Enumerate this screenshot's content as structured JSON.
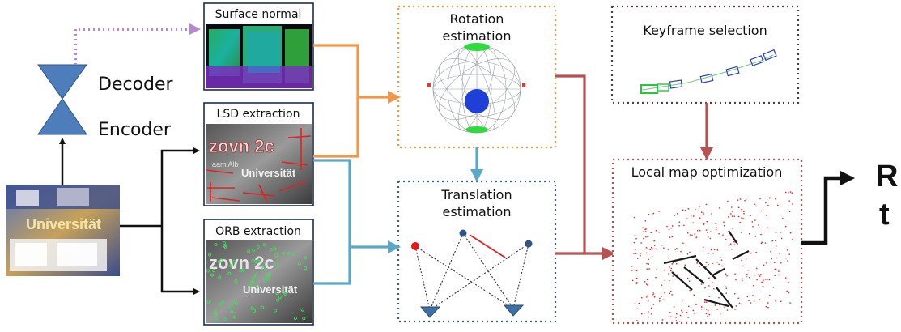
{
  "nodes": {
    "decoder_label": "Decoder",
    "encoder_label": "Encoder",
    "surface_normal": "Surface normal",
    "lsd_extraction": "LSD extraction",
    "orb_extraction": "ORB extraction",
    "rotation_line1": "Rotation",
    "rotation_line2": "estimation",
    "translation_line1": "Translation",
    "translation_line2": "estimation",
    "keyframe_selection": "Keyframe selection",
    "local_map_optimization": "Local map optimization",
    "output_r": "R",
    "output_t": "t"
  },
  "image_text": {
    "universitat": "Universität",
    "graffiti": "zovn 2c",
    "partial": "aam Alb"
  },
  "colors": {
    "surface_branch": "#b487cf",
    "rotation_branch": "#f09846",
    "translation_branch": "#57a9c6",
    "optimization_branch": "#b85252",
    "keyframe_branch": "#b85252",
    "keyframe_border": "#4a3d55",
    "translation_border": "#3f6082",
    "rotation_border": "#f09846",
    "localmap_border": "#b85252",
    "hourglass": "#4d7dbb",
    "black_arrow": "#111111"
  },
  "icons": {
    "encoder_decoder": "hourglass-icon",
    "translation_cameras": "camera-triangle-icon",
    "rotation_sphere": "gaussian-sphere-icon"
  }
}
